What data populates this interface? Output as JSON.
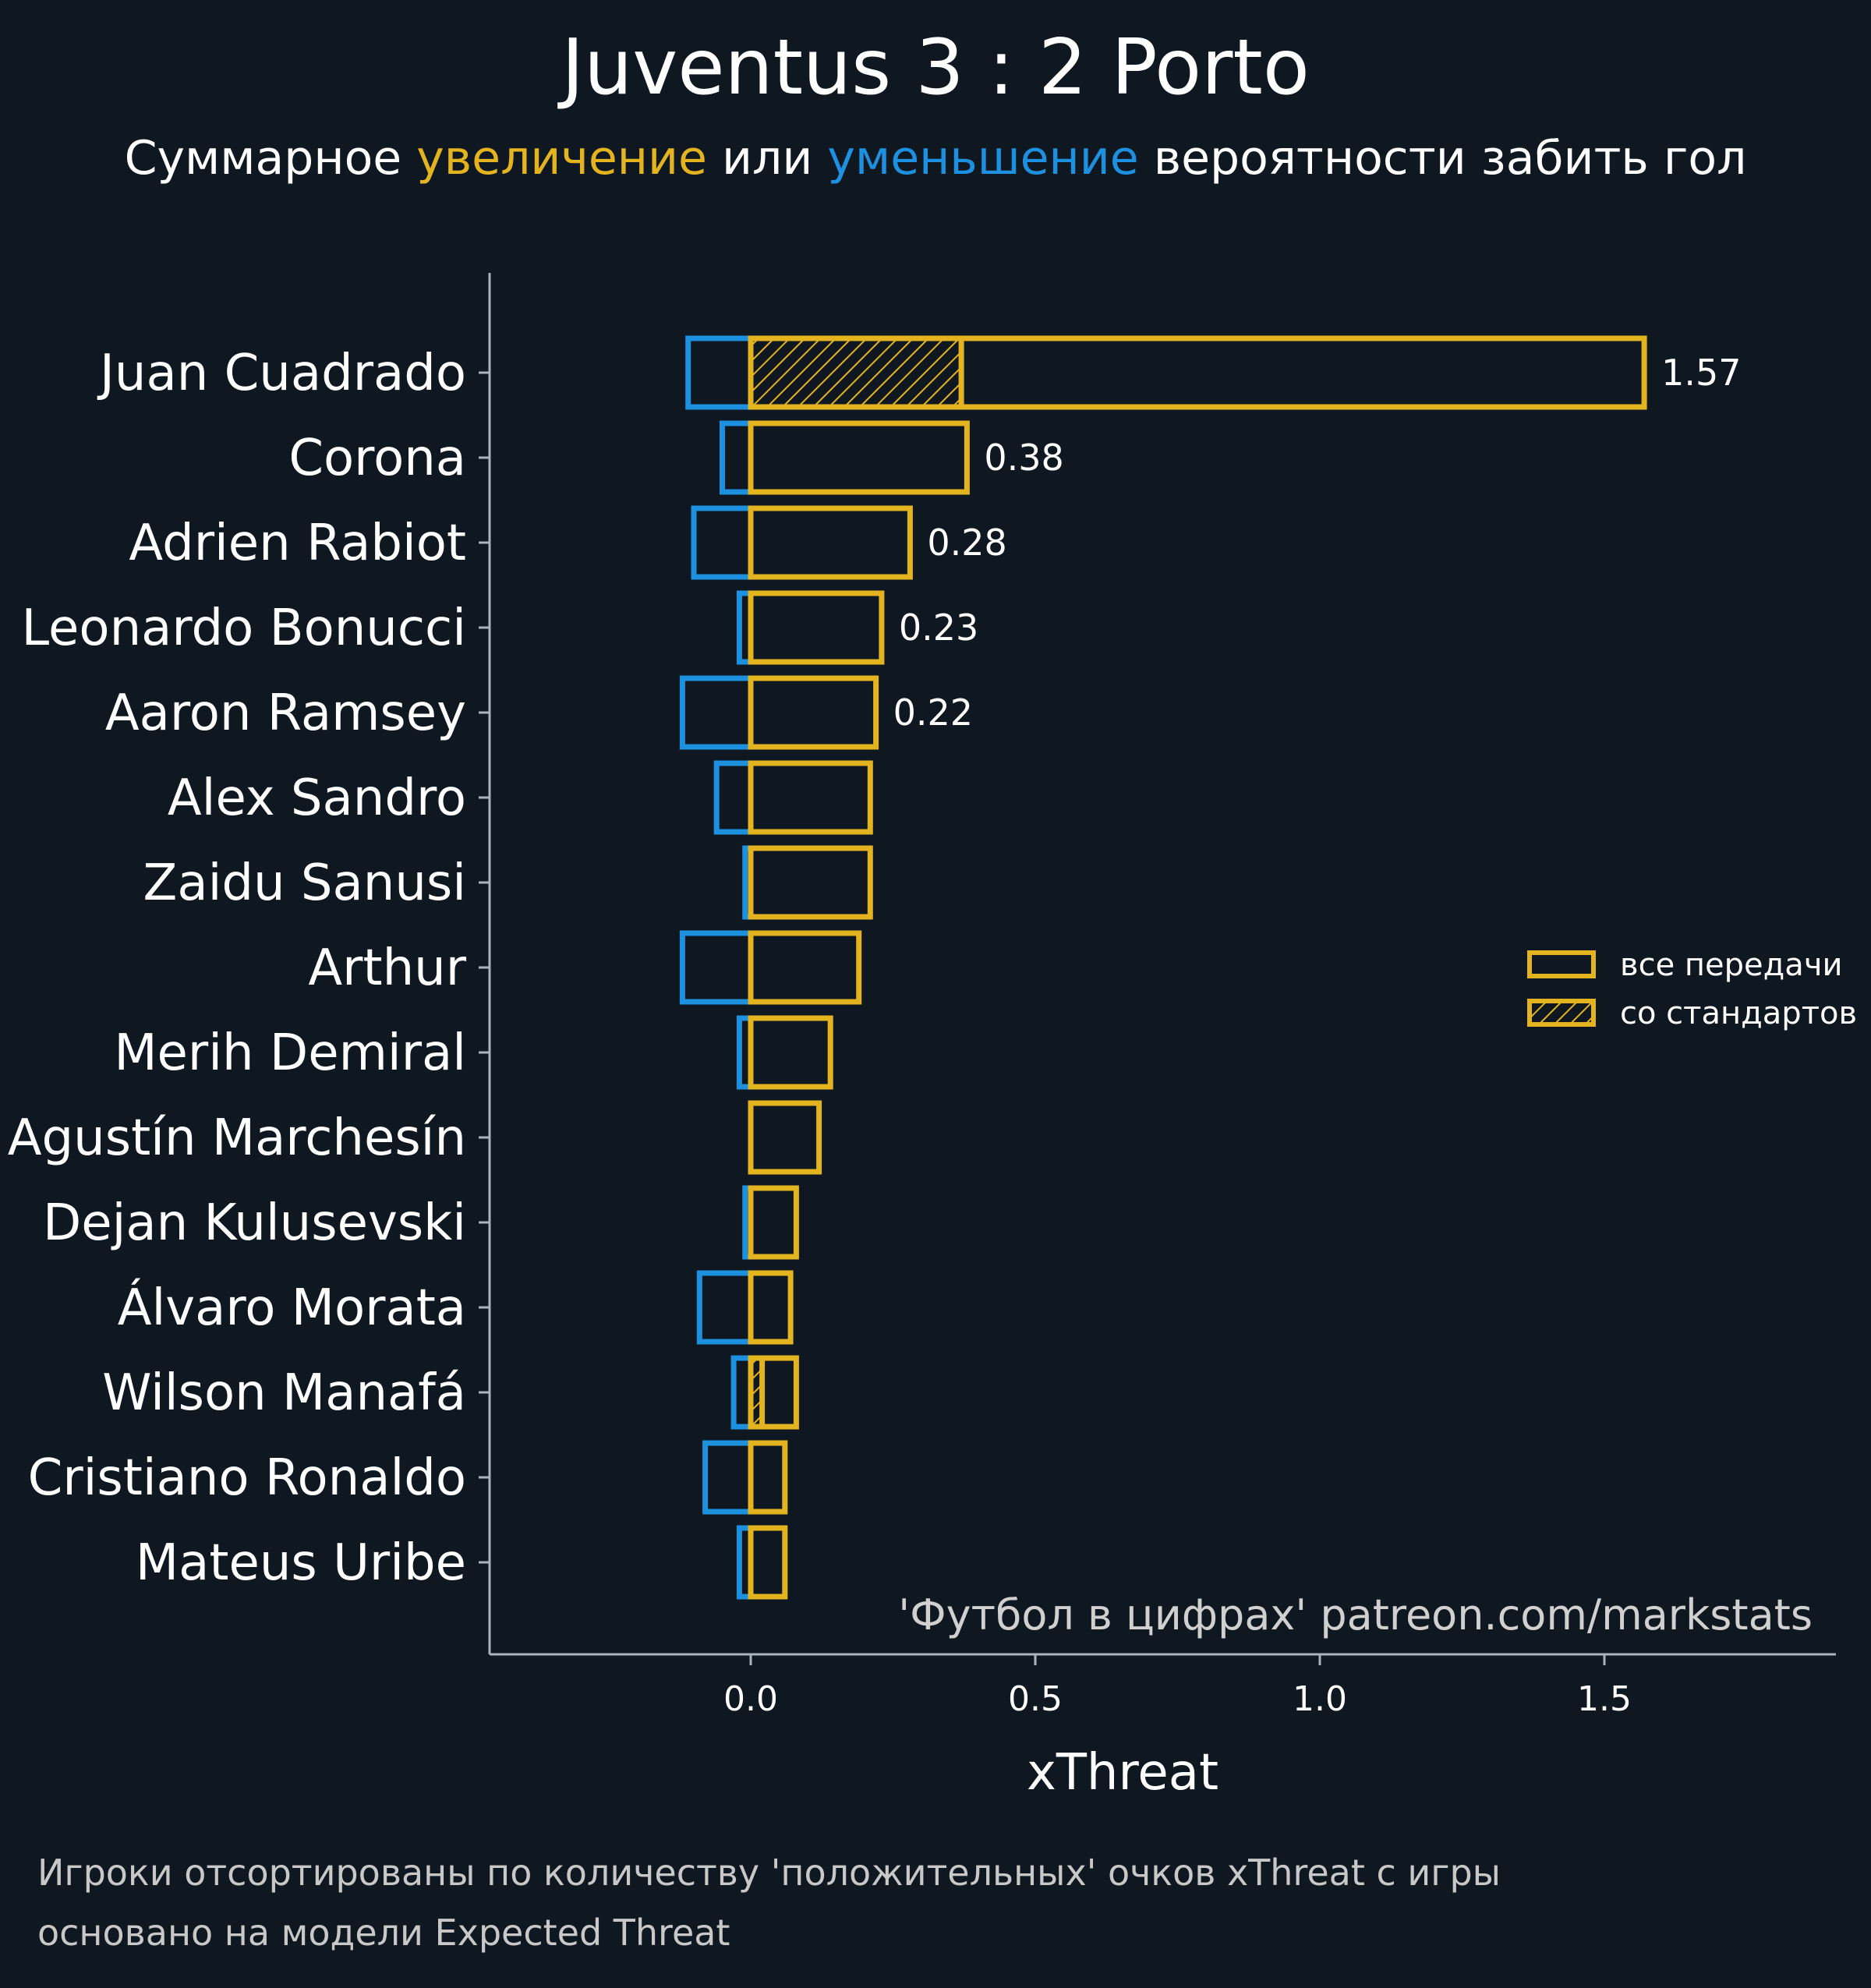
{
  "title": "Juventus 3 : 2 Porto",
  "subtitle": {
    "part1": "Суммарное ",
    "increase": "увеличение",
    "part2": " или ",
    "decrease": "уменьшение",
    "part3": " вероятности забить гол"
  },
  "watermark": "'Футбол в цифрах' patreon.com/markstats",
  "footnotes": [
    "Игроки отсортированы по количеству 'положительных' очков xThreat с игры",
    "основано на модели Expected Threat"
  ],
  "colors": {
    "background": "#0f1820",
    "positive": "#e3b41f",
    "negative": "#1e90e0",
    "axis": "#aab4bc"
  },
  "chart_data": {
    "type": "bar",
    "orientation": "horizontal",
    "xlabel": "xThreat",
    "xlim": [
      -0.46,
      1.9
    ],
    "xticks": [
      0.0,
      0.5,
      1.0,
      1.5
    ],
    "xtick_labels": [
      "0.0",
      "0.5",
      "1.0",
      "1.5"
    ],
    "grid": false,
    "legend": {
      "position": "right",
      "entries": [
        {
          "label": "все передачи",
          "style": "outline"
        },
        {
          "label": "со стандартов",
          "style": "hatched"
        }
      ]
    },
    "categories": [
      "Juan Cuadrado",
      "Corona",
      "Adrien Rabiot",
      "Leonardo Bonucci",
      "Aaron Ramsey",
      "Alex Sandro",
      "Zaidu Sanusi",
      "Arthur",
      "Merih Demiral",
      "Agustín Marchesín",
      "Dejan Kulusevski",
      "Álvaro Morata",
      "Wilson Manafá",
      "Cristiano Ronaldo",
      "Mateus Uribe"
    ],
    "series": [
      {
        "name": "все передачи",
        "role": "positive",
        "values": [
          1.57,
          0.38,
          0.28,
          0.23,
          0.22,
          0.21,
          0.21,
          0.19,
          0.14,
          0.12,
          0.08,
          0.07,
          0.08,
          0.06,
          0.06
        ]
      },
      {
        "role": "negative",
        "values": [
          -0.11,
          -0.05,
          -0.1,
          -0.02,
          -0.12,
          -0.06,
          -0.01,
          -0.12,
          -0.02,
          0.0,
          -0.01,
          -0.09,
          -0.03,
          -0.08,
          -0.02
        ]
      },
      {
        "name": "со стандартов",
        "role": "set_pieces",
        "values": [
          0.37,
          0.0,
          0.0,
          0.0,
          0.0,
          0.0,
          0.0,
          0.0,
          0.0,
          0.0,
          0.0,
          0.0,
          0.02,
          0.0,
          0.0
        ]
      }
    ],
    "value_labels": [
      "1.57",
      "0.38",
      "0.28",
      "0.23",
      "0.22"
    ]
  }
}
